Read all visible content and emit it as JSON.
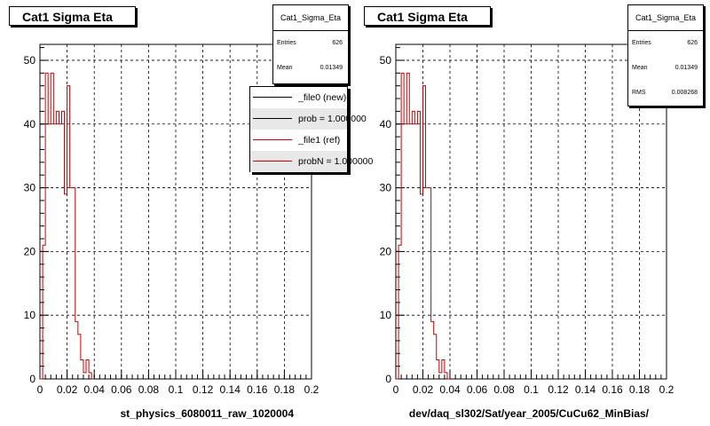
{
  "panels": [
    {
      "title": "Cat1 Sigma Eta",
      "xlabel": "st_physics_6080011_raw_1020004",
      "stats": {
        "name": "Cat1_Sigma_Eta",
        "rows": [
          {
            "label": "Entries",
            "value": "626"
          },
          {
            "label": "Mean",
            "value": "0.01349"
          }
        ]
      },
      "legend": [
        {
          "label": "_file0 (new)",
          "color": "#000000"
        },
        {
          "label": "prob = 1.000000",
          "color": "#000000"
        },
        {
          "label": "_file1 (ref)",
          "color": "#cc0000"
        },
        {
          "label": "probN = 1.000000",
          "color": "#cc0000"
        }
      ]
    },
    {
      "title": "Cat1 Sigma Eta",
      "xlabel": "dev/daq_sl302/Sat/year_2005/CuCu62_MinBias/",
      "stats": {
        "name": "Cat1_Sigma_Eta",
        "rows": [
          {
            "label": "Entries",
            "value": "626"
          },
          {
            "label": "Mean",
            "value": "0.01349"
          },
          {
            "label": "RMS",
            "value": "0.008268"
          }
        ]
      }
    }
  ],
  "chart_data": [
    {
      "type": "line",
      "title": "Cat1 Sigma Eta",
      "xlabel": "st_physics_6080011_raw_1020004",
      "ylabel": "",
      "xlim": [
        0,
        0.2
      ],
      "ylim": [
        0,
        52.5
      ],
      "xticks": [
        "0",
        "0.02",
        "0.04",
        "0.06",
        "0.08",
        "0.1",
        "0.12",
        "0.14",
        "0.16",
        "0.18",
        "0.2"
      ],
      "yticks": [
        "0",
        "10",
        "20",
        "30",
        "40",
        "50"
      ],
      "grid": true,
      "bin_width": 0.002,
      "series": [
        {
          "name": "_file1 (ref)",
          "color": "#cc0000",
          "values": [
            0,
            21,
            48,
            40,
            48,
            40,
            42,
            40,
            42,
            29,
            46,
            30,
            30,
            9,
            7,
            3,
            1,
            3,
            1,
            0
          ]
        }
      ]
    },
    {
      "type": "line",
      "title": "Cat1 Sigma Eta",
      "xlabel": "dev/daq_sl302/Sat/year_2005/CuCu62_MinBias/",
      "ylabel": "",
      "xlim": [
        0,
        0.2
      ],
      "ylim": [
        0,
        52.5
      ],
      "xticks": [
        "0",
        "0.02",
        "0.04",
        "0.06",
        "0.08",
        "0.1",
        "0.12",
        "0.14",
        "0.16",
        "0.18",
        "0.2"
      ],
      "yticks": [
        "0",
        "10",
        "20",
        "30",
        "40",
        "50"
      ],
      "grid": true,
      "bin_width": 0.002,
      "series": [
        {
          "name": "Cat1_Sigma_Eta",
          "color": "#cc0000",
          "values": [
            0,
            21,
            48,
            40,
            48,
            40,
            42,
            40,
            42,
            29,
            46,
            30,
            30,
            9,
            7,
            3,
            1,
            3,
            1,
            0
          ]
        }
      ]
    }
  ]
}
